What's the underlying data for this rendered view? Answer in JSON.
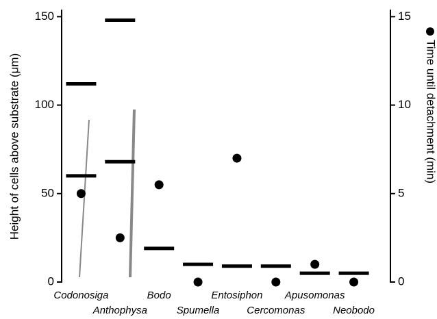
{
  "chart_data": {
    "type": "dash-dot",
    "ylabel": "Height of cells above substrate (μm)",
    "y2label": "Time until detachment (min)",
    "categories": [
      "Codonosiga",
      "Anthophysa",
      "Bodo",
      "Spumella",
      "Entosiphon",
      "Cercomonas",
      "Apusomonas",
      "Neobodo"
    ],
    "series": [
      {
        "marker": "dash",
        "color": "#000000",
        "values": [
          112,
          148,
          19,
          10,
          9,
          9,
          5,
          5
        ]
      },
      {
        "marker": "dash",
        "color": "#000000",
        "values": [
          60,
          68,
          null,
          null,
          null,
          null,
          null,
          null
        ]
      },
      {
        "marker": "dot",
        "axis": "y2",
        "color": "#000000",
        "values": [
          5,
          2.5,
          5.5,
          0,
          7,
          0,
          1,
          0
        ]
      }
    ],
    "ylim": [
      0,
      154
    ],
    "yticks": [
      0,
      50,
      100,
      150
    ],
    "y2lim": [
      0,
      15.4
    ],
    "y2ticks": [
      0,
      5,
      10,
      15
    ]
  }
}
